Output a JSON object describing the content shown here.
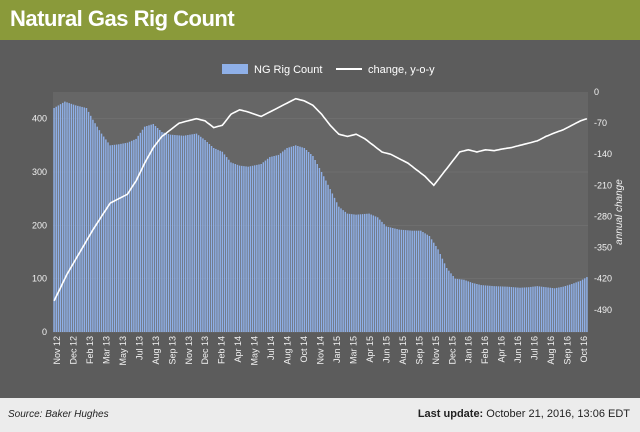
{
  "header": {
    "title": "Natural Gas Rig Count"
  },
  "footer": {
    "source": "Source: Baker Hughes",
    "update_label": "Last update:",
    "update_value": "October 21, 2016, 13:06 EDT"
  },
  "colors": {
    "header": "#8a9a3a",
    "bars": "#8fb0e8",
    "line": "#ffffff",
    "plot_bg": "#666666"
  },
  "chart_data": {
    "type": "bar+line",
    "legend": {
      "position": "top-center",
      "entries": [
        "NG Rig Count",
        "change, y-o-y"
      ]
    },
    "x_ticks": [
      "Nov 12",
      "Dec 12",
      "Feb 13",
      "Mar 13",
      "May 13",
      "Jul 13",
      "Aug 13",
      "Sep 13",
      "Nov 13",
      "Dec 13",
      "Feb 14",
      "Apr 14",
      "May 14",
      "Jul 14",
      "Aug 14",
      "Oct 14",
      "Nov 14",
      "Jan 15",
      "Mar 15",
      "Apr 15",
      "Jun 15",
      "Aug 15",
      "Sep 15",
      "Nov 15",
      "Dec 15",
      "Jan 16",
      "Feb 16",
      "Apr 16",
      "Jun 16",
      "Jul 16",
      "Aug 16",
      "Sep 16",
      "Oct 16"
    ],
    "y_left": {
      "min": 0,
      "max": 450,
      "ticks": [
        0,
        100,
        200,
        300,
        400
      ]
    },
    "y_right": {
      "label": "annual change",
      "min": -540,
      "max": 0,
      "ticks": [
        0,
        -70,
        -140,
        -210,
        -280,
        -350,
        -420,
        -490
      ]
    },
    "rig_count_series": {
      "name": "NG Rig Count",
      "axis": "left",
      "anchors": [
        [
          0,
          420
        ],
        [
          5,
          432
        ],
        [
          10,
          425
        ],
        [
          15,
          420
        ],
        [
          18,
          398
        ],
        [
          22,
          372
        ],
        [
          26,
          350
        ],
        [
          30,
          352
        ],
        [
          34,
          355
        ],
        [
          38,
          362
        ],
        [
          42,
          385
        ],
        [
          46,
          390
        ],
        [
          50,
          375
        ],
        [
          54,
          370
        ],
        [
          60,
          368
        ],
        [
          66,
          372
        ],
        [
          70,
          360
        ],
        [
          74,
          345
        ],
        [
          78,
          338
        ],
        [
          82,
          318
        ],
        [
          86,
          312
        ],
        [
          90,
          310
        ],
        [
          96,
          315
        ],
        [
          100,
          328
        ],
        [
          104,
          332
        ],
        [
          108,
          345
        ],
        [
          112,
          350
        ],
        [
          116,
          345
        ],
        [
          120,
          330
        ],
        [
          124,
          300
        ],
        [
          128,
          268
        ],
        [
          132,
          235
        ],
        [
          136,
          222
        ],
        [
          140,
          220
        ],
        [
          146,
          222
        ],
        [
          150,
          215
        ],
        [
          154,
          198
        ],
        [
          160,
          192
        ],
        [
          166,
          190
        ],
        [
          170,
          190
        ],
        [
          174,
          180
        ],
        [
          178,
          155
        ],
        [
          182,
          120
        ],
        [
          186,
          100
        ],
        [
          190,
          98
        ],
        [
          194,
          92
        ],
        [
          198,
          88
        ],
        [
          204,
          86
        ],
        [
          210,
          85
        ],
        [
          216,
          83
        ],
        [
          220,
          84
        ],
        [
          224,
          86
        ],
        [
          228,
          84
        ],
        [
          232,
          82
        ],
        [
          236,
          85
        ],
        [
          240,
          90
        ],
        [
          244,
          96
        ],
        [
          247,
          103
        ]
      ]
    },
    "yoy_change_series": {
      "name": "change, y-o-y",
      "axis": "right",
      "anchors": [
        [
          0,
          -470
        ],
        [
          6,
          -410
        ],
        [
          12,
          -360
        ],
        [
          18,
          -310
        ],
        [
          22,
          -280
        ],
        [
          26,
          -250
        ],
        [
          30,
          -240
        ],
        [
          34,
          -230
        ],
        [
          38,
          -200
        ],
        [
          42,
          -160
        ],
        [
          46,
          -125
        ],
        [
          50,
          -100
        ],
        [
          54,
          -85
        ],
        [
          58,
          -70
        ],
        [
          62,
          -65
        ],
        [
          66,
          -60
        ],
        [
          70,
          -65
        ],
        [
          74,
          -80
        ],
        [
          78,
          -75
        ],
        [
          82,
          -50
        ],
        [
          86,
          -40
        ],
        [
          90,
          -45
        ],
        [
          96,
          -55
        ],
        [
          100,
          -45
        ],
        [
          104,
          -35
        ],
        [
          108,
          -25
        ],
        [
          112,
          -15
        ],
        [
          116,
          -20
        ],
        [
          120,
          -30
        ],
        [
          124,
          -50
        ],
        [
          128,
          -75
        ],
        [
          132,
          -95
        ],
        [
          136,
          -100
        ],
        [
          140,
          -95
        ],
        [
          144,
          -105
        ],
        [
          148,
          -120
        ],
        [
          152,
          -135
        ],
        [
          156,
          -140
        ],
        [
          160,
          -150
        ],
        [
          164,
          -160
        ],
        [
          168,
          -175
        ],
        [
          172,
          -190
        ],
        [
          176,
          -210
        ],
        [
          180,
          -185
        ],
        [
          184,
          -160
        ],
        [
          188,
          -135
        ],
        [
          192,
          -130
        ],
        [
          196,
          -135
        ],
        [
          200,
          -130
        ],
        [
          204,
          -132
        ],
        [
          208,
          -128
        ],
        [
          212,
          -125
        ],
        [
          216,
          -120
        ],
        [
          220,
          -115
        ],
        [
          224,
          -110
        ],
        [
          228,
          -100
        ],
        [
          232,
          -92
        ],
        [
          236,
          -85
        ],
        [
          240,
          -75
        ],
        [
          244,
          -65
        ],
        [
          247,
          -60
        ]
      ]
    }
  }
}
